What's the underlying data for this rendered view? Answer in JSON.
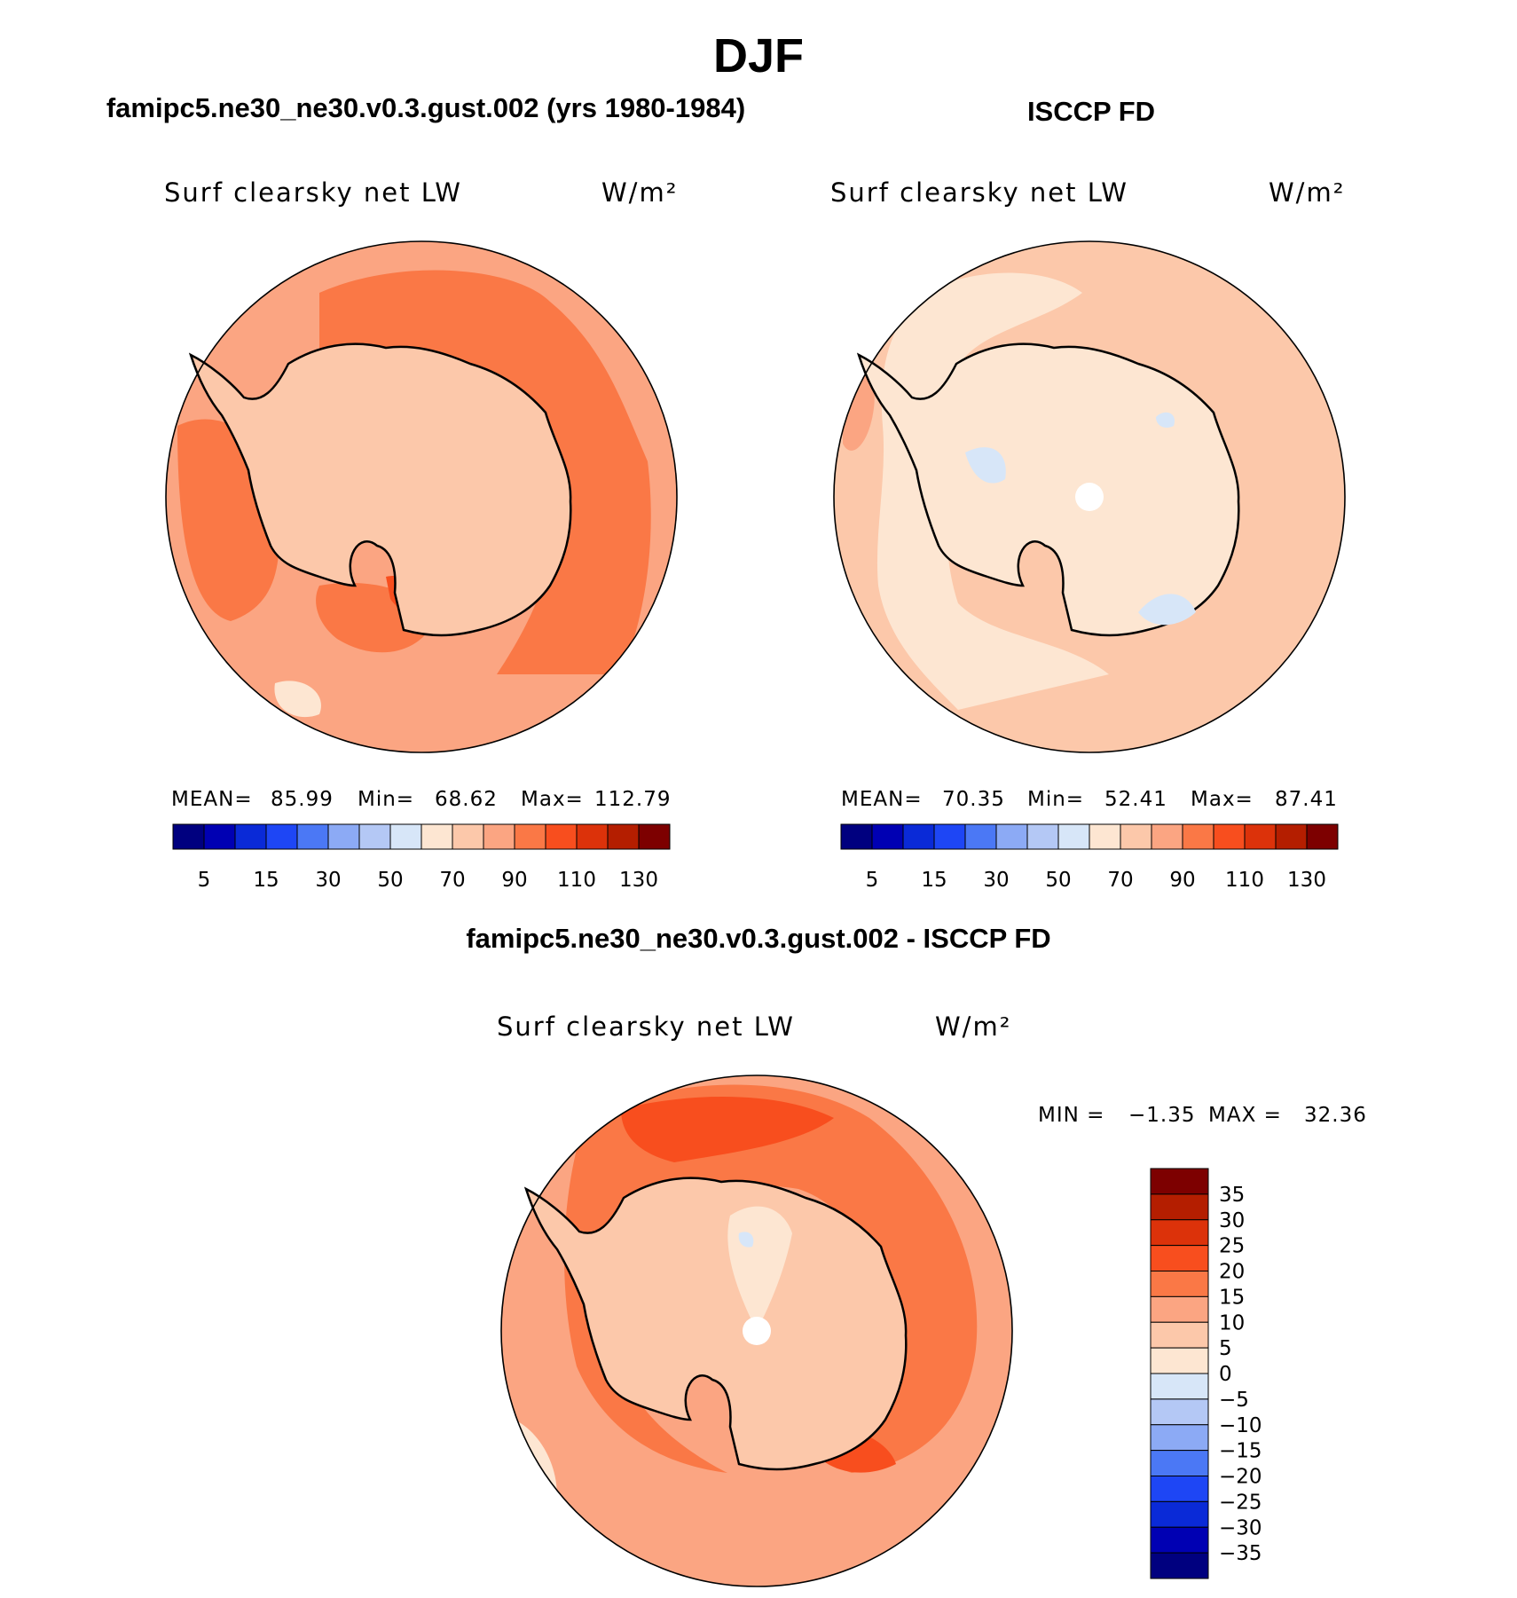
{
  "title": "DJF",
  "panels": [
    {
      "title": "famipc5.ne30_ne30.v0.3.gust.002 (yrs 1980-1984)",
      "variable": "Surf  clearsky  net  LW",
      "units": "W/m²",
      "stats": {
        "mean_label": "MEAN=",
        "mean": "85.99",
        "min_label": "Min=",
        "min": "68.62",
        "max_label": "Max=",
        "max": "112.79"
      }
    },
    {
      "title": "ISCCP FD",
      "variable": "Surf  clearsky  net  LW",
      "units": "W/m²",
      "stats": {
        "mean_label": "MEAN=",
        "mean": "70.35",
        "min_label": "Min=",
        "min": "52.41",
        "max_label": "Max=",
        "max": "87.41"
      }
    }
  ],
  "difference": {
    "title": "famipc5.ne30_ne30.v0.3.gust.002 - ISCCP FD",
    "variable": "Surf  clearsky  net  LW",
    "units": "W/m²",
    "stats": {
      "min_label": "MIN  =",
      "min": "−1.35",
      "max_label": "MAX  =",
      "max": "32.36"
    }
  },
  "colorbar_main": {
    "colors": [
      "#00007f",
      "#0000b3",
      "#0a2ad7",
      "#1e46f5",
      "#4b78f5",
      "#8caaf5",
      "#b4c8f5",
      "#d7e6f8",
      "#fde6d2",
      "#fcc8aa",
      "#fba582",
      "#fa7846",
      "#f84e1e",
      "#dc320a",
      "#b41e00",
      "#7d0000"
    ],
    "labels": [
      "5",
      "15",
      "30",
      "50",
      "70",
      "90",
      "110",
      "130"
    ]
  },
  "colorbar_diff": {
    "colors": [
      "#7d0000",
      "#b41e00",
      "#dc320a",
      "#f84e1e",
      "#fa7846",
      "#fba582",
      "#fcc8aa",
      "#fde6d2",
      "#d7e6f8",
      "#b4c8f5",
      "#8caaf5",
      "#4b78f5",
      "#1e46f5",
      "#0a2ad7",
      "#0000b3",
      "#00007f"
    ],
    "labels": [
      "35",
      "30",
      "25",
      "20",
      "15",
      "10",
      "5",
      "0",
      "−5",
      "−10",
      "−15",
      "−20",
      "−25",
      "−30",
      "−35"
    ]
  }
}
